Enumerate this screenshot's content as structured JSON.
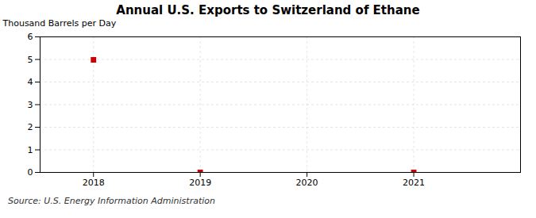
{
  "chart_data": {
    "type": "scatter",
    "title": "Annual U.S. Exports to Switzerland of Ethane",
    "ylabel": "Thousand Barrels per Day",
    "source": "Source: U.S. Energy Information Administration",
    "x": [
      2018,
      2019,
      2021
    ],
    "values": [
      4.983,
      0.003,
      0.003
    ],
    "color": "#cc0000",
    "marker": "square",
    "xlim": [
      2017.5,
      2022.0
    ],
    "xticks": [
      2018,
      2019,
      2020,
      2021
    ],
    "ylim": [
      0,
      6
    ],
    "yticks": [
      0,
      1,
      2,
      3,
      4,
      5,
      6
    ],
    "grid": true
  }
}
